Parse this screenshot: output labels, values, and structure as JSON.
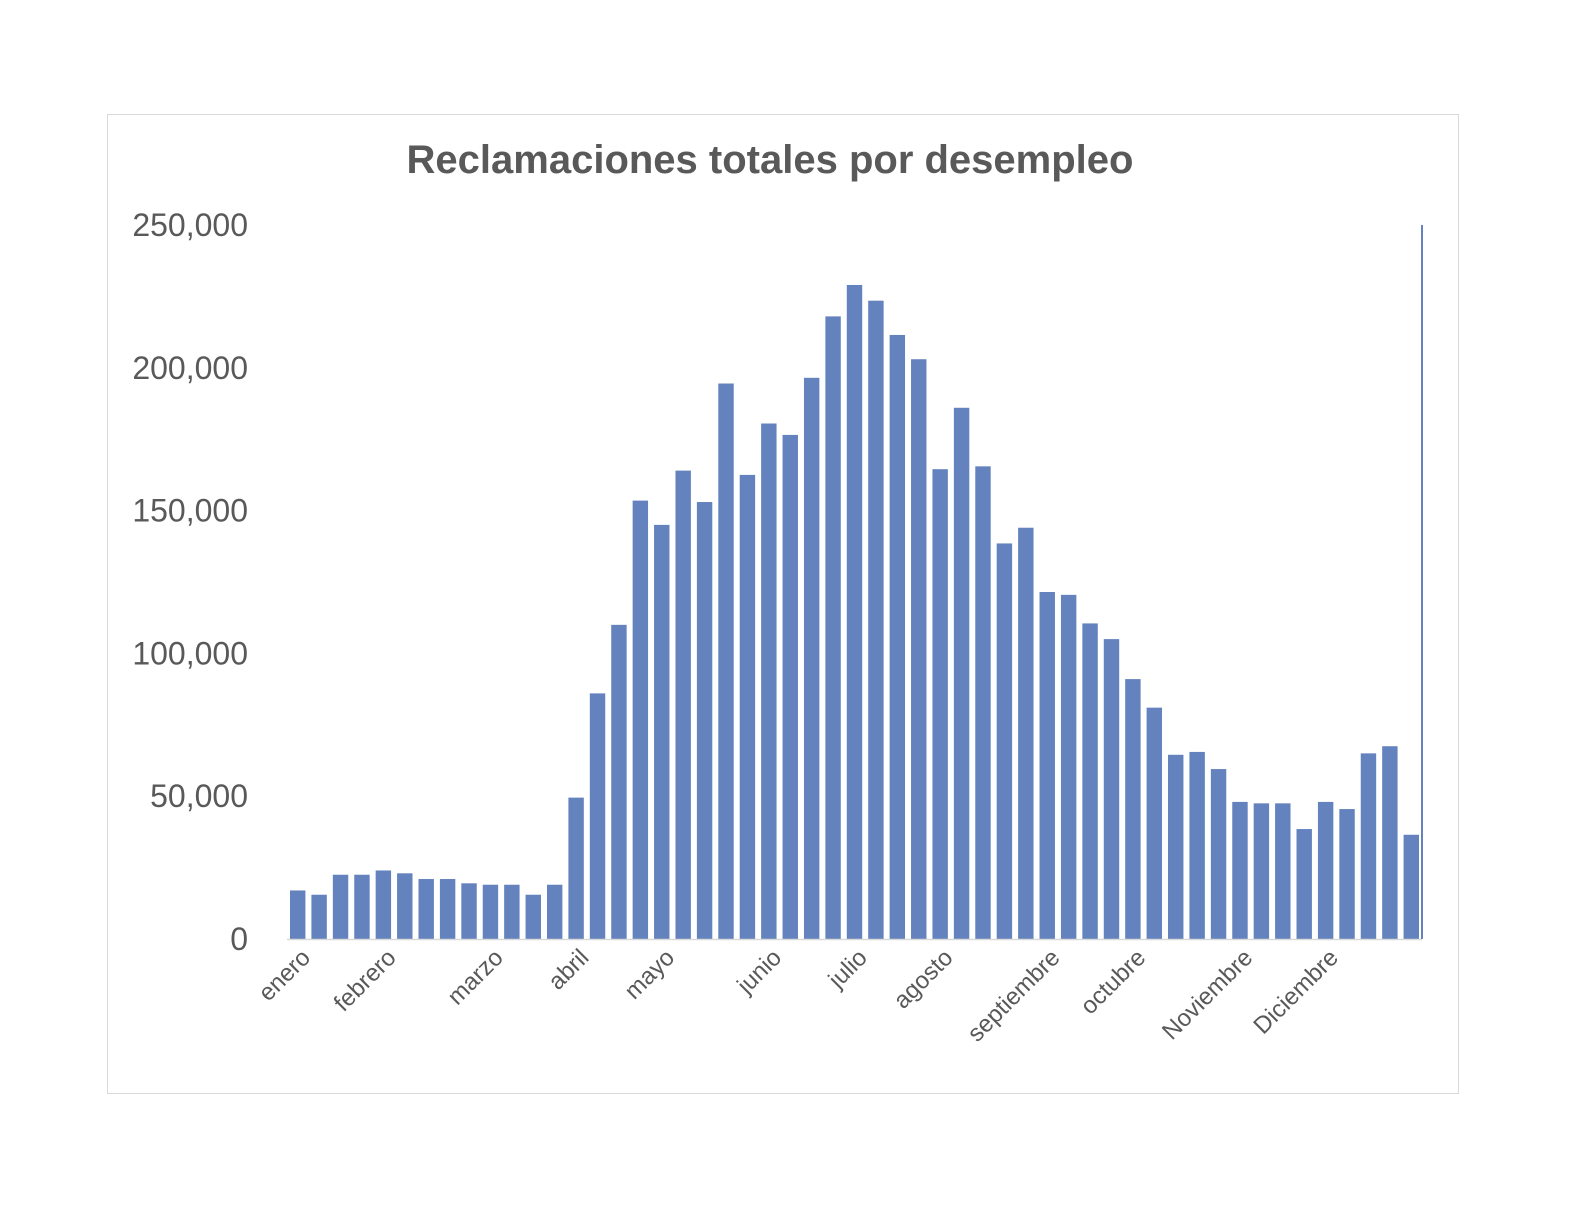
{
  "chart_data": {
    "type": "bar",
    "title": "Reclamaciones totales por desempleo",
    "xlabel": "",
    "ylabel": "",
    "ylim": [
      0,
      250000
    ],
    "yticks": [
      0,
      50000,
      100000,
      150000,
      200000,
      250000
    ],
    "ytick_labels": [
      "0",
      "50,000",
      "100,000",
      "150,000",
      "200,000",
      "250,000"
    ],
    "grid": false,
    "legend": "none",
    "bar_color": "#6482bd",
    "month_labels": [
      {
        "label": "enero",
        "bar_index": 0
      },
      {
        "label": "febrero",
        "bar_index": 4
      },
      {
        "label": "marzo",
        "bar_index": 9
      },
      {
        "label": "abril",
        "bar_index": 13
      },
      {
        "label": "mayo",
        "bar_index": 17
      },
      {
        "label": "junio",
        "bar_index": 22
      },
      {
        "label": "julio",
        "bar_index": 26
      },
      {
        "label": "agosto",
        "bar_index": 30
      },
      {
        "label": "septiembre",
        "bar_index": 35
      },
      {
        "label": "octubre",
        "bar_index": 39
      },
      {
        "label": "Noviembre",
        "bar_index": 44
      },
      {
        "label": "Diciembre",
        "bar_index": 48
      }
    ],
    "values": [
      17000,
      15500,
      22500,
      22500,
      24000,
      23000,
      21000,
      21000,
      19500,
      19000,
      19000,
      15500,
      19000,
      49500,
      86000,
      110000,
      153500,
      145000,
      164000,
      153000,
      194500,
      162500,
      180500,
      176500,
      196500,
      218000,
      229000,
      223500,
      211500,
      203000,
      164500,
      186000,
      165500,
      138500,
      144000,
      121500,
      120500,
      110500,
      105000,
      91000,
      81000,
      64500,
      65500,
      59500,
      48000,
      47500,
      47500,
      38500,
      48000,
      45500,
      65000,
      67500,
      36500
    ]
  }
}
